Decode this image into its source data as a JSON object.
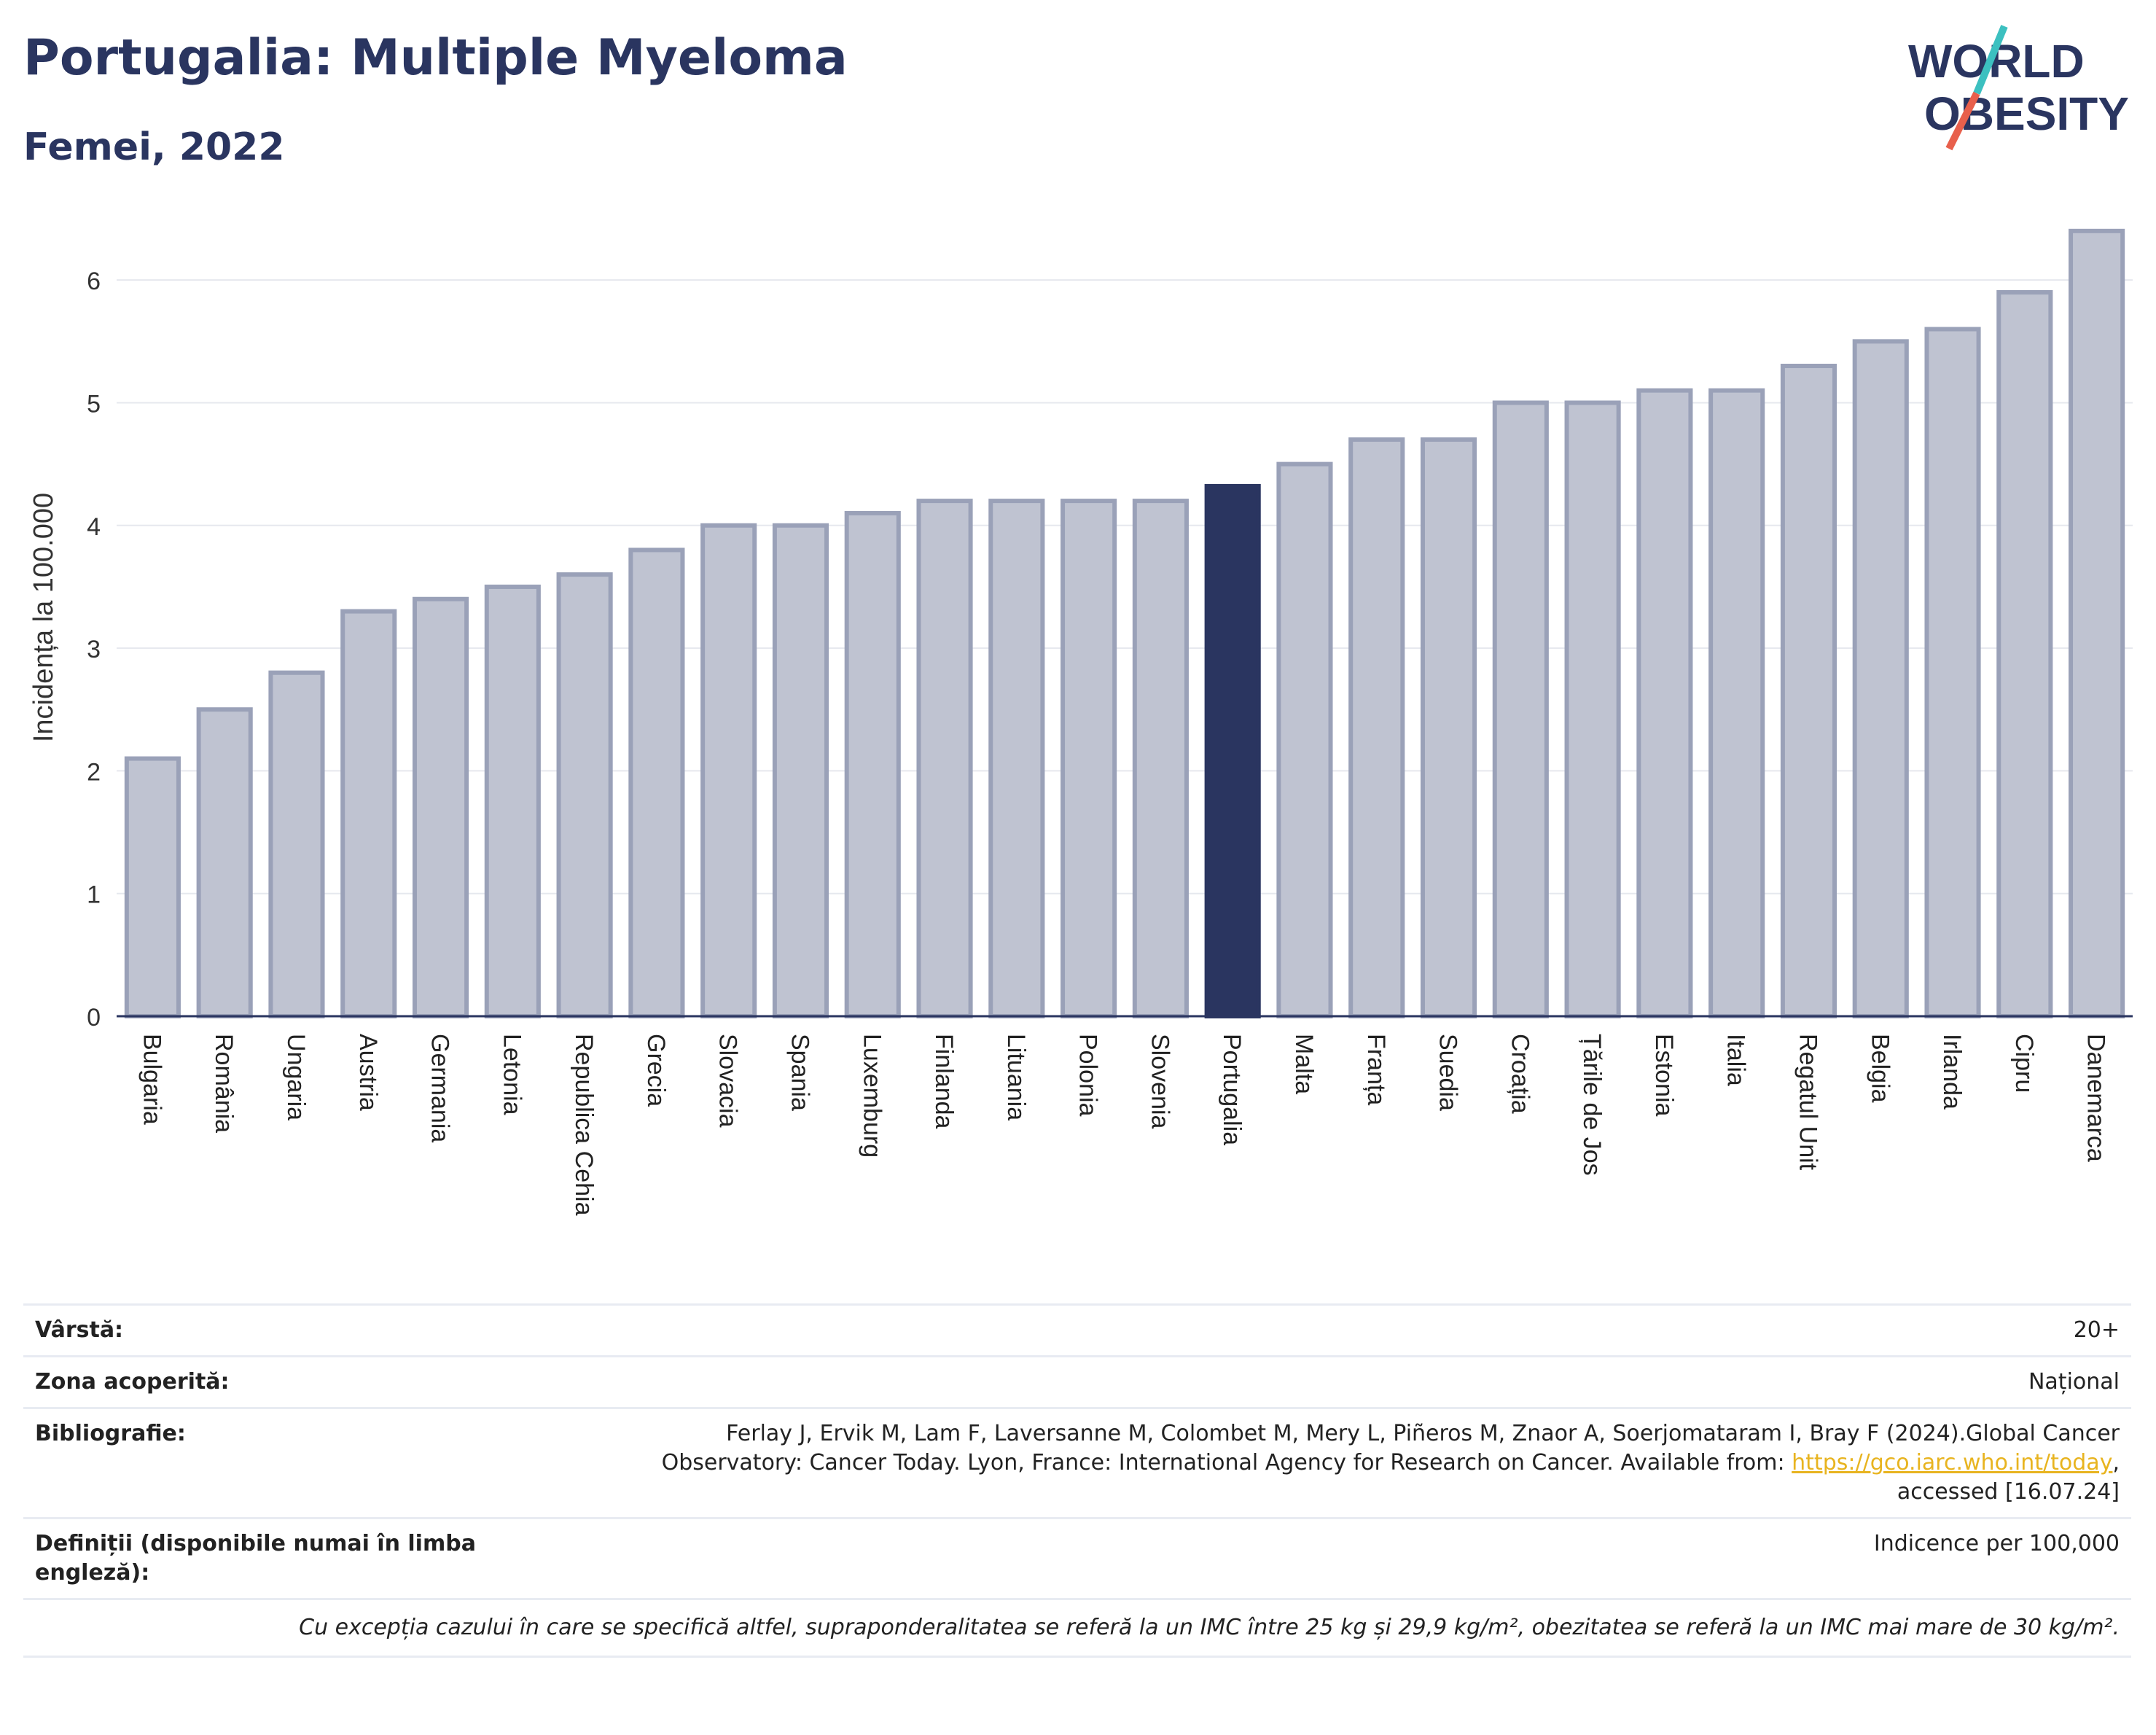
{
  "header": {
    "title": "Portugalia: Multiple Myeloma",
    "subtitle": "Femei, 2022",
    "logo_line1": "WORLD",
    "logo_line2": "OBESITY"
  },
  "colors": {
    "highlight": "#2a3560",
    "bar_fill": "#bfc3d1",
    "bar_stroke": "#9aa1b8",
    "text_dark": "#2a3560",
    "logo_slash_top": "#3cc0c0",
    "logo_slash_bottom": "#e8604c",
    "link": "#e8b420"
  },
  "chart_data": {
    "type": "bar",
    "ylabel": "Incidența la 100.000",
    "ylim": [
      0,
      6.5
    ],
    "yticks": [
      0,
      1,
      2,
      3,
      4,
      5,
      6
    ],
    "grid": true,
    "highlight_category": "Portugalia",
    "categories": [
      "Bulgaria",
      "România",
      "Ungaria",
      "Austria",
      "Germania",
      "Letonia",
      "Republica Cehia",
      "Grecia",
      "Slovacia",
      "Spania",
      "Luxemburg",
      "Finlanda",
      "Lituania",
      "Polonia",
      "Slovenia",
      "Portugalia",
      "Malta",
      "Franța",
      "Suedia",
      "Croația",
      "Țările de Jos",
      "Estonia",
      "Italia",
      "Regatul Unit",
      "Belgia",
      "Irlanda",
      "Cipru",
      "Danemarca"
    ],
    "values": [
      2.1,
      2.5,
      2.8,
      3.3,
      3.4,
      3.5,
      3.6,
      3.8,
      4.0,
      4.0,
      4.1,
      4.2,
      4.2,
      4.2,
      4.2,
      4.32,
      4.5,
      4.7,
      4.7,
      5.0,
      5.0,
      5.1,
      5.1,
      5.3,
      5.5,
      5.6,
      5.9,
      6.4
    ]
  },
  "info": {
    "rows": [
      {
        "label": "Vârstă:",
        "value": "20+"
      },
      {
        "label": "Zona acoperită:",
        "value": "Național"
      }
    ],
    "biblio_label": "Bibliografie:",
    "biblio_text": "Ferlay J, Ervik M, Lam F, Laversanne M, Colombet M, Mery L, Piñeros M, Znaor A, Soerjomataram I, Bray F (2024).Global Cancer Observatory: Cancer Today. Lyon, France: International Agency for Research on Cancer. Available from: ",
    "biblio_link": "https://gco.iarc.who.int/today",
    "biblio_tail": ", accessed [16.07.24]",
    "def_label": "Definiții (disponibile numai în limba engleză):",
    "def_value": "Indicence per 100,000",
    "note": "Cu excepția cazului în care se specifică altfel, supraponderalitatea se referă la un IMC între 25 kg și 29,9 kg/m², obezitatea se referă la un IMC mai mare de 30 kg/m²."
  }
}
